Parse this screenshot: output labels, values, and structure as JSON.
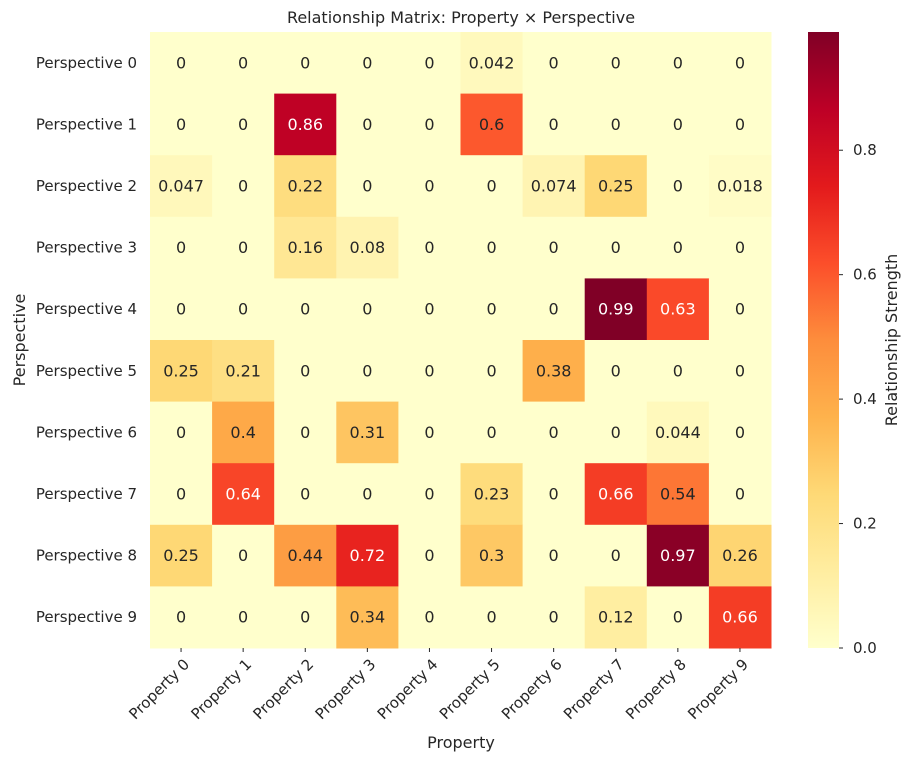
{
  "chart_data": {
    "type": "heatmap",
    "title": "Relationship Matrix: Property × Perspective",
    "xlabel": "Property",
    "ylabel": "Perspective",
    "x_categories": [
      "Property 0",
      "Property 1",
      "Property 2",
      "Property 3",
      "Property 4",
      "Property 5",
      "Property 6",
      "Property 7",
      "Property 8",
      "Property 9"
    ],
    "y_categories": [
      "Perspective 0",
      "Perspective 1",
      "Perspective 2",
      "Perspective 3",
      "Perspective 4",
      "Perspective 5",
      "Perspective 6",
      "Perspective 7",
      "Perspective 8",
      "Perspective 9"
    ],
    "values": [
      [
        0,
        0,
        0,
        0,
        0,
        0.042,
        0,
        0,
        0,
        0
      ],
      [
        0,
        0,
        0.86,
        0,
        0,
        0.6,
        0,
        0,
        0,
        0
      ],
      [
        0.047,
        0,
        0.22,
        0,
        0,
        0,
        0.074,
        0.25,
        0,
        0.018
      ],
      [
        0,
        0,
        0.16,
        0.08,
        0,
        0,
        0,
        0,
        0,
        0
      ],
      [
        0,
        0,
        0,
        0,
        0,
        0,
        0,
        0.99,
        0.63,
        0
      ],
      [
        0.25,
        0.21,
        0,
        0,
        0,
        0,
        0.38,
        0,
        0,
        0
      ],
      [
        0,
        0.4,
        0,
        0.31,
        0,
        0,
        0,
        0,
        0.044,
        0
      ],
      [
        0,
        0.64,
        0,
        0,
        0,
        0.23,
        0,
        0.66,
        0.54,
        0
      ],
      [
        0.25,
        0,
        0.44,
        0.72,
        0,
        0.3,
        0,
        0,
        0.97,
        0.26
      ],
      [
        0,
        0,
        0,
        0.34,
        0,
        0,
        0,
        0.12,
        0,
        0.66
      ]
    ],
    "colorbar": {
      "label": "Relationship Strength",
      "vmin": 0,
      "vmax": 0.99,
      "ticks": [
        0.0,
        0.2,
        0.4,
        0.6,
        0.8
      ],
      "tick_labels": [
        "0.0",
        "0.2",
        "0.4",
        "0.6",
        "0.8"
      ],
      "colormap": "YlOrRd",
      "colormap_stops": [
        "#ffffcc",
        "#ffeda0",
        "#fed976",
        "#feb24c",
        "#fd8d3c",
        "#fc4e2a",
        "#e31a1c",
        "#bd0026",
        "#800026"
      ]
    },
    "dark_text_color": "#262626",
    "light_text_color": "#ffffff"
  }
}
